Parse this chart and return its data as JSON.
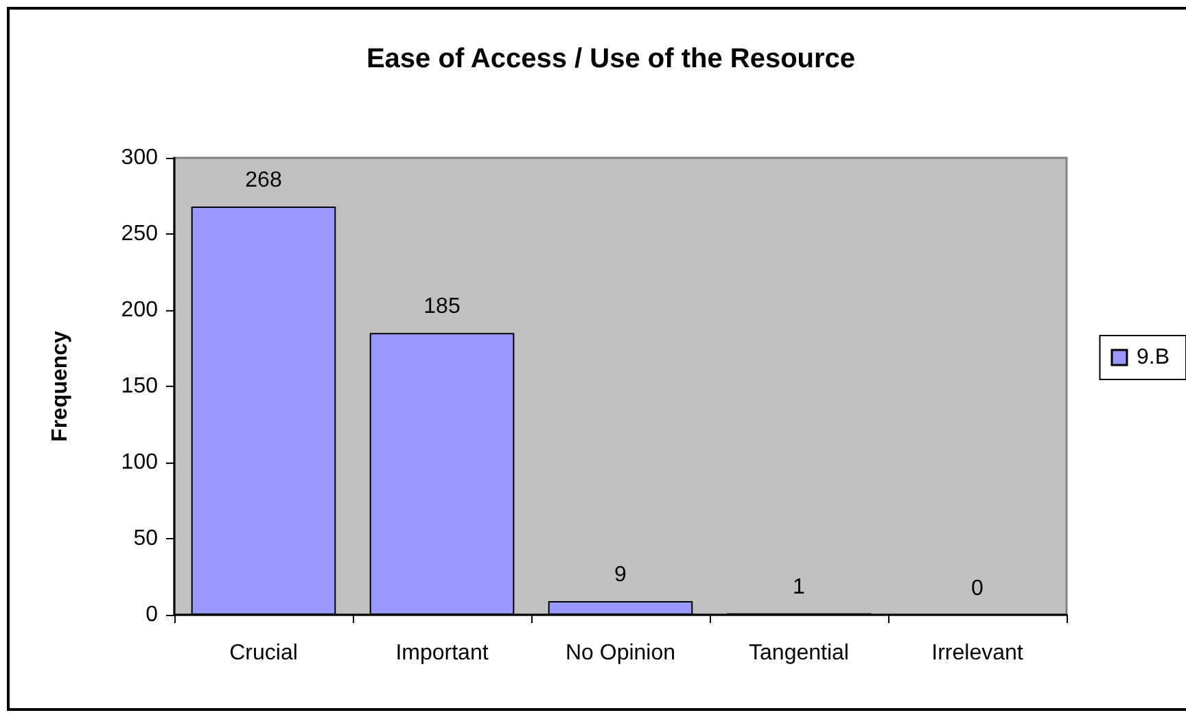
{
  "chart_data": {
    "type": "bar",
    "title": "Ease of Access / Use of the Resource",
    "ylabel": "Frequency",
    "categories": [
      "Crucial",
      "Important",
      "No Opinion",
      "Tangential",
      "Irrelevant"
    ],
    "series": [
      {
        "name": "9.B",
        "color": "#9999ff",
        "values": [
          268,
          185,
          9,
          1,
          0
        ]
      }
    ],
    "ylim": [
      0,
      300
    ],
    "yticks": [
      0,
      50,
      100,
      150,
      200,
      250,
      300
    ],
    "grid": false,
    "legend": "right",
    "data_labels": true
  }
}
